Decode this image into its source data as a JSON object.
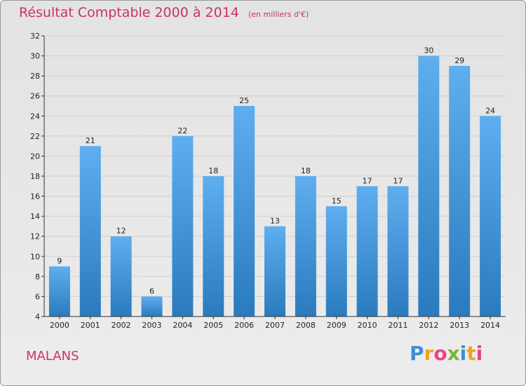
{
  "header": {
    "title": "Résultat Comptable 2000 à 2014",
    "subtitle": "(en milliers d'€)"
  },
  "footer": {
    "town": "MALANS",
    "brand_letters": [
      "P",
      "r",
      "o",
      "x",
      "i",
      "t",
      "i"
    ]
  },
  "colors": {
    "title": "#c8336a",
    "bar_top": "#5eaef0",
    "bar_bottom": "#2a7bbd",
    "axis": "#333333",
    "grid": "#cfcfcf"
  },
  "chart_data": {
    "type": "bar",
    "title": "Résultat Comptable 2000 à 2014",
    "xlabel": "",
    "ylabel": "",
    "categories": [
      "2000",
      "2001",
      "2002",
      "2003",
      "2004",
      "2005",
      "2006",
      "2007",
      "2008",
      "2009",
      "2010",
      "2011",
      "2012",
      "2013",
      "2014"
    ],
    "values": [
      9,
      21,
      12,
      6,
      22,
      18,
      25,
      13,
      18,
      15,
      17,
      17,
      30,
      29,
      24
    ],
    "ylim": [
      4,
      32
    ],
    "yticks": [
      4,
      6,
      8,
      10,
      12,
      14,
      16,
      18,
      20,
      22,
      24,
      26,
      28,
      30,
      32
    ],
    "grid": true,
    "data_labels": true
  }
}
